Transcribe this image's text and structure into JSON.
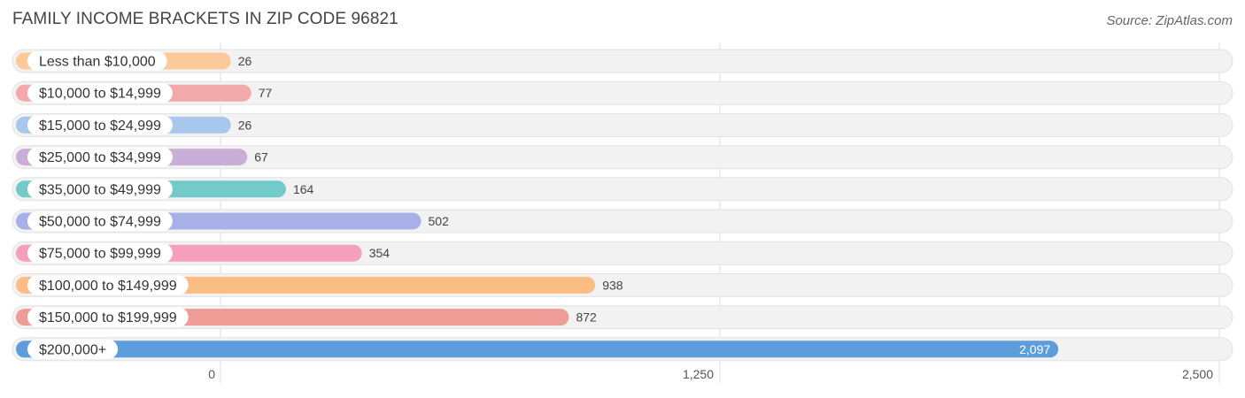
{
  "header": {
    "title": "FAMILY INCOME BRACKETS IN ZIP CODE 96821",
    "source": "Source: ZipAtlas.com"
  },
  "chart_data": {
    "type": "bar",
    "orientation": "horizontal",
    "title": "FAMILY INCOME BRACKETS IN ZIP CODE 96821",
    "categories": [
      "Less than $10,000",
      "$10,000 to $14,999",
      "$15,000 to $24,999",
      "$25,000 to $34,999",
      "$35,000 to $49,999",
      "$50,000 to $74,999",
      "$75,000 to $99,999",
      "$100,000 to $149,999",
      "$150,000 to $199,999",
      "$200,000+"
    ],
    "values": [
      26,
      77,
      26,
      67,
      164,
      502,
      354,
      938,
      872,
      2097
    ],
    "value_labels": [
      "26",
      "77",
      "26",
      "67",
      "164",
      "502",
      "354",
      "938",
      "872",
      "2,097"
    ],
    "colors": [
      "#fcc99a",
      "#f2a9aa",
      "#a9c7ec",
      "#c9afd7",
      "#72cac9",
      "#a8b0e8",
      "#f69fbd",
      "#fbbd84",
      "#ee9c96",
      "#5e9ddc"
    ],
    "xlim": [
      0,
      2500
    ],
    "ticks": [
      0,
      1250,
      2500
    ],
    "tick_labels": [
      "0",
      "1,250",
      "2,500"
    ],
    "grid": true,
    "legend": "none"
  }
}
